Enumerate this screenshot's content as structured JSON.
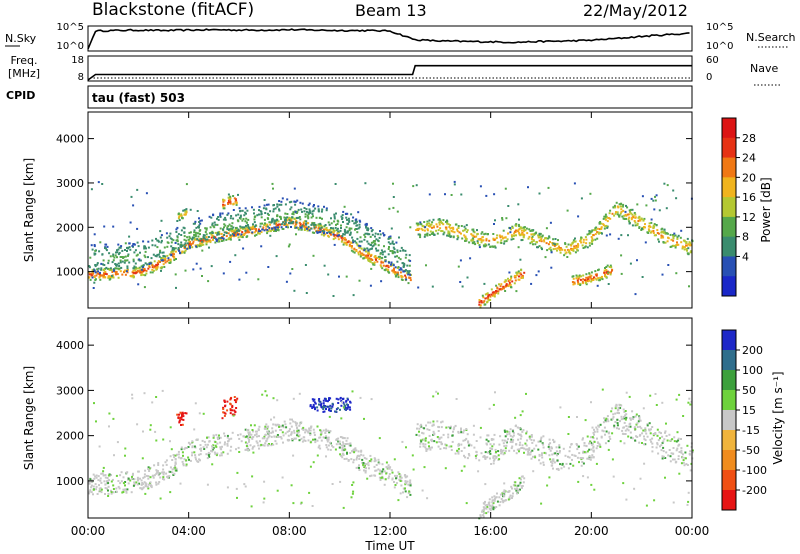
{
  "header": {
    "station": "Blackstone (fitACF)",
    "beam": "Beam 13",
    "date": "22/May/2012"
  },
  "noise_panel": {
    "left_label": "N.Sky",
    "left_ticks": [
      "10^5",
      "10^0"
    ],
    "right_label": "N.Search",
    "right_ticks": [
      "10^5",
      "10^0"
    ]
  },
  "freq_panel": {
    "left_label_1": "Freq.",
    "left_label_2": "[MHz]",
    "left_ticks": [
      "18",
      "8"
    ],
    "right_label": "Nave",
    "right_ticks": [
      "60",
      "0"
    ]
  },
  "cpid": {
    "label": "CPID",
    "value": "tau (fast) 503"
  },
  "power_panel": {
    "ylabel": "Slant Range [km]",
    "yticks": [
      "4000",
      "3000",
      "2000",
      "1000"
    ],
    "colorbar_label": "Power [dB]",
    "colorbar_ticks": [
      "28",
      "24",
      "20",
      "16",
      "12",
      "8",
      "4"
    ],
    "colors": [
      "#1a28c8",
      "#2850b4",
      "#3a8c6e",
      "#55a84a",
      "#b4c832",
      "#f0b41e",
      "#f07814",
      "#e63214",
      "#dc1414"
    ]
  },
  "velocity_panel": {
    "ylabel": "Slant Range [km]",
    "yticks": [
      "4000",
      "3000",
      "2000",
      "1000"
    ],
    "colorbar_label": "Velocity [m s⁻¹]",
    "colorbar_ticks": [
      "200",
      "100",
      "50",
      "15",
      "-15",
      "-50",
      "-100",
      "-200"
    ],
    "colors": [
      "#1e28c8",
      "#2f6e8c",
      "#3ca03c",
      "#6ed23c",
      "#c8c8c8",
      "#f0b43c",
      "#f08c1e",
      "#f05014",
      "#e61414"
    ]
  },
  "xaxis": {
    "label": "Time UT",
    "ticks": [
      "00:00",
      "04:00",
      "08:00",
      "12:00",
      "16:00",
      "20:00",
      "00:00"
    ]
  },
  "chart_data": [
    {
      "type": "line",
      "name": "noise",
      "x_hours": [
        0,
        0.3,
        1,
        2,
        3,
        4,
        5,
        6,
        7,
        8,
        9,
        10,
        11,
        12,
        13,
        14,
        15,
        16,
        17,
        18,
        19,
        20,
        21,
        22,
        23,
        24
      ],
      "values_log10": [
        0,
        4.3,
        4.4,
        4.5,
        4.4,
        4.5,
        4.6,
        4.5,
        4.5,
        4.6,
        4.5,
        4.4,
        4.4,
        4.3,
        2.2,
        1.9,
        1.8,
        1.7,
        1.6,
        1.8,
        1.9,
        2.1,
        2.5,
        3.0,
        3.4,
        3.8
      ],
      "ylim": [
        0,
        5
      ]
    },
    {
      "type": "line",
      "name": "frequency",
      "x_hours": [
        0,
        0.3,
        12.9,
        13.0,
        24
      ],
      "values_mhz": [
        8,
        10.5,
        10.5,
        14.5,
        14.5
      ],
      "ylim": [
        8,
        18
      ]
    },
    {
      "type": "heatmap",
      "name": "power",
      "xlim": [
        0,
        24
      ],
      "ylim": [
        180,
        4600
      ],
      "bands": [
        {
          "x": [
            0,
            2,
            3,
            4,
            5,
            6,
            7,
            8,
            9,
            10,
            11,
            12,
            12.8
          ],
          "y": [
            950,
            1000,
            1250,
            1650,
            1800,
            1900,
            2000,
            2150,
            2000,
            1800,
            1400,
            1100,
            850
          ],
          "width": 160,
          "power": 24
        },
        {
          "x": [
            0,
            2,
            4,
            6,
            8,
            10,
            12,
            12.8
          ],
          "y": [
            1300,
            1350,
            1850,
            2150,
            2350,
            2100,
            1500,
            1200
          ],
          "width": 400,
          "power": 10
        },
        {
          "x": [
            13,
            14,
            15,
            16,
            17,
            18,
            19,
            20,
            21,
            22,
            23,
            24
          ],
          "y": [
            1950,
            2050,
            1850,
            1700,
            1950,
            1700,
            1500,
            1800,
            2450,
            2100,
            1750,
            1550
          ],
          "width": 220,
          "power": 20
        },
        {
          "x": [
            15.5,
            16.2,
            16.8,
            17.3
          ],
          "y": [
            300,
            600,
            800,
            1000
          ],
          "width": 160,
          "power": 26
        },
        {
          "x": [
            19.2,
            19.8,
            20.3,
            20.8
          ],
          "y": [
            800,
            850,
            950,
            1050
          ],
          "width": 160,
          "power": 24
        },
        {
          "x": [
            5.3,
            5.9
          ],
          "y": [
            2550,
            2650
          ],
          "width": 150,
          "power": 26
        },
        {
          "x": [
            3.5,
            3.9
          ],
          "y": [
            2250,
            2350
          ],
          "width": 120,
          "power": 18
        }
      ]
    },
    {
      "type": "heatmap",
      "name": "velocity",
      "xlim": [
        0,
        24
      ],
      "ylim": [
        180,
        4600
      ],
      "bands": [
        {
          "x": [
            0,
            2,
            3,
            4,
            5,
            6,
            7,
            8,
            9,
            10,
            11,
            12,
            12.8
          ],
          "y": [
            950,
            1000,
            1250,
            1650,
            1800,
            1900,
            2000,
            2150,
            2000,
            1800,
            1400,
            1100,
            850
          ],
          "width": 300,
          "velocity": 0
        },
        {
          "x": [
            13,
            14,
            15,
            16,
            17,
            18,
            19,
            20,
            21,
            22,
            23,
            24
          ],
          "y": [
            1950,
            2050,
            1850,
            1700,
            1950,
            1700,
            1500,
            1800,
            2450,
            2100,
            1750,
            1550
          ],
          "width": 400,
          "velocity": 0
        },
        {
          "x": [
            15.5,
            16.2,
            16.8,
            17.3
          ],
          "y": [
            300,
            600,
            800,
            1000
          ],
          "width": 200,
          "velocity": 0
        },
        {
          "x": [
            5.3,
            5.9
          ],
          "y": [
            2600,
            2700
          ],
          "width": 250,
          "velocity": -220
        },
        {
          "x": [
            3.5,
            3.9
          ],
          "y": [
            2350,
            2450
          ],
          "width": 200,
          "velocity": -220
        },
        {
          "x": [
            8.8,
            10.4
          ],
          "y": [
            2700,
            2700
          ],
          "width": 200,
          "velocity": 220
        }
      ]
    }
  ]
}
